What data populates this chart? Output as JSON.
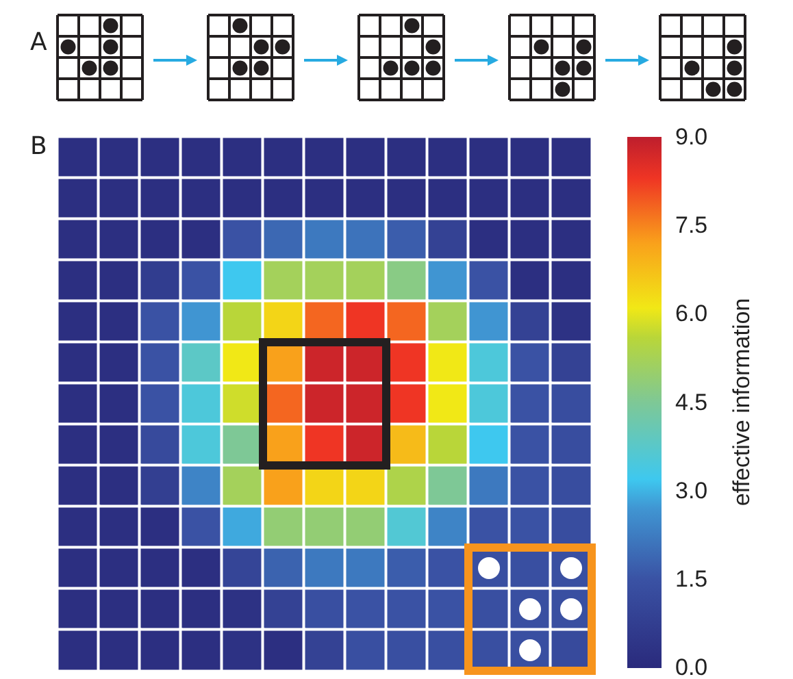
{
  "chart_data": {
    "type": "heatmap",
    "clabel": "effective information",
    "annotations": [
      "A",
      "B"
    ],
    "categories": [
      null,
      null,
      null,
      null,
      null,
      null,
      null,
      null,
      null,
      null,
      null,
      null,
      null
    ],
    "y_categories": [
      null,
      null,
      null,
      null,
      null,
      null,
      null,
      null,
      null,
      null,
      null,
      null,
      null
    ],
    "tick_labels": false,
    "clim": [
      0,
      9
    ],
    "cticks": [
      {
        "value": 0,
        "label": "0.0"
      },
      {
        "value": 1.5,
        "label": "1.5"
      },
      {
        "value": 3,
        "label": "3.0"
      },
      {
        "value": 4.5,
        "label": "4.5"
      },
      {
        "value": 6,
        "label": "6.0"
      },
      {
        "value": 7.5,
        "label": "7.5"
      },
      {
        "value": 9,
        "label": "9.0"
      }
    ],
    "cells": [
      [
        0.2,
        0.2,
        0.2,
        0.2,
        0.2,
        0.2,
        0.2,
        0.2,
        0.2,
        0.2,
        0.2,
        0.2,
        0.2
      ],
      [
        0.2,
        0.2,
        0.2,
        0.2,
        0.2,
        0.2,
        0.2,
        0.2,
        0.2,
        0.2,
        0.2,
        0.2,
        0.2
      ],
      [
        0.2,
        0.2,
        0.2,
        0.2,
        1.5,
        1.9,
        2.2,
        2.1,
        1.7,
        0.9,
        0.2,
        0.2,
        0.2
      ],
      [
        0.2,
        0.2,
        0.7,
        1.5,
        3.2,
        5.2,
        5.2,
        5.2,
        4.7,
        2.7,
        1.5,
        0.2,
        0.2
      ],
      [
        0.2,
        0.2,
        1.5,
        2.7,
        5.6,
        6.4,
        7.8,
        8.3,
        7.8,
        5.2,
        2.7,
        0.9,
        0.3
      ],
      [
        0.2,
        0.2,
        1.5,
        3.8,
        6.1,
        7.2,
        8.8,
        8.8,
        8.3,
        6.1,
        3.5,
        1.5,
        0.9
      ],
      [
        0.2,
        0.2,
        1.5,
        3.5,
        5.8,
        7.8,
        8.8,
        8.8,
        8.3,
        6.1,
        3.5,
        1.5,
        1.3
      ],
      [
        0.2,
        0.2,
        1.2,
        3.5,
        4.5,
        7.2,
        8.3,
        8.8,
        6.8,
        5.6,
        3.2,
        1.5,
        1.3
      ],
      [
        0.2,
        0.2,
        0.8,
        2.4,
        5.2,
        7.2,
        6.4,
        6.4,
        5.4,
        4.5,
        2.2,
        1.5,
        1.3
      ],
      [
        0.2,
        0.2,
        0.2,
        1.5,
        2.9,
        4.9,
        4.9,
        4.9,
        3.6,
        2.4,
        1.5,
        1.5,
        1.3
      ],
      [
        0.2,
        0.2,
        0.2,
        0.2,
        1.0,
        1.8,
        2.2,
        2.2,
        1.7,
        1.5,
        1.4,
        1.4,
        1.4
      ],
      [
        0.2,
        0.2,
        0.2,
        0.2,
        0.3,
        0.9,
        1.4,
        1.5,
        1.5,
        1.5,
        1.4,
        1.4,
        1.4
      ],
      [
        0.2,
        0.2,
        0.2,
        0.2,
        0.3,
        0.2,
        0.9,
        1.4,
        1.4,
        1.4,
        1.4,
        1.4,
        1.2
      ]
    ]
  }
}
